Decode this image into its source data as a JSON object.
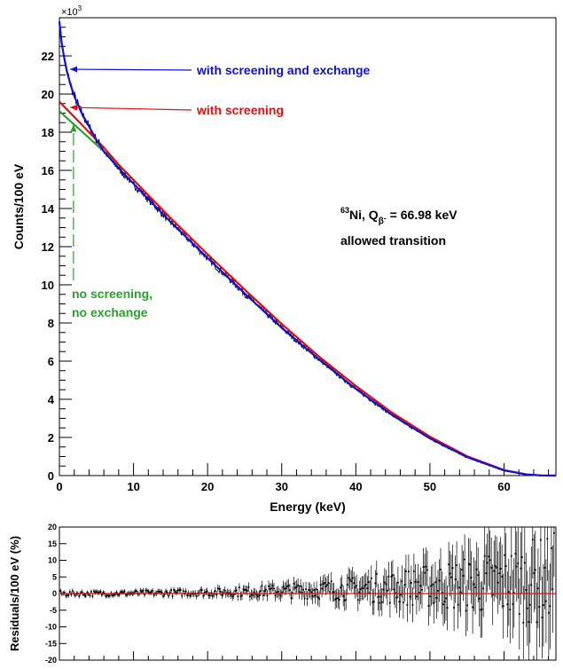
{
  "chart_data": [
    {
      "type": "line",
      "xlabel": "Energy (keV)",
      "ylabel": "Counts/100 eV",
      "y_multiplier_label": "×10",
      "y_multiplier_exp": "3",
      "xlim": [
        0,
        67
      ],
      "ylim": [
        0,
        24
      ],
      "x_ticks": [
        "0",
        "10",
        "20",
        "30",
        "40",
        "50",
        "60"
      ],
      "y_ticks": [
        "0",
        "2",
        "4",
        "6",
        "8",
        "10",
        "12",
        "14",
        "16",
        "18",
        "20",
        "22"
      ],
      "grid": false,
      "annotation": {
        "isotope_mass": "63",
        "isotope_text": "Ni, Q",
        "q_sub": "β",
        "q_sup": "-",
        "q_value": " = 66.98 keV",
        "line2": "allowed transition"
      },
      "series": [
        {
          "name": "with screening and exchange",
          "color": "#1010d8",
          "arrow_to": [
            1.2,
            21.3
          ],
          "x": [
            0,
            0.3,
            0.6,
            1,
            1.5,
            2,
            3,
            4,
            5,
            6,
            8,
            10,
            12,
            15,
            20,
            25,
            30,
            35,
            40,
            45,
            50,
            55,
            60,
            63,
            65,
            66.98
          ],
          "y": [
            23.8,
            22.7,
            22.0,
            21.2,
            20.5,
            19.9,
            19.0,
            18.3,
            17.6,
            17.0,
            16.1,
            15.3,
            14.5,
            13.3,
            11.4,
            9.55,
            7.75,
            6.1,
            4.55,
            3.15,
            1.95,
            0.97,
            0.27,
            0.06,
            0.01,
            0
          ]
        },
        {
          "name": "with screening",
          "color": "#e01010",
          "arrow_to": [
            1.2,
            19.3
          ],
          "x": [
            0,
            1,
            2,
            3,
            4,
            6,
            8,
            10,
            12,
            15,
            20,
            25,
            30,
            35,
            40,
            45,
            50,
            55,
            60,
            63,
            65,
            66.98
          ],
          "y": [
            19.6,
            19.2,
            18.8,
            18.4,
            18.0,
            17.2,
            16.3,
            15.5,
            14.7,
            13.5,
            11.6,
            9.75,
            7.95,
            6.25,
            4.7,
            3.27,
            2.04,
            1.02,
            0.29,
            0.06,
            0.01,
            0
          ]
        },
        {
          "name": "no screening, no exchange",
          "color": "#2e9e2e",
          "arrow_to": [
            1.9,
            18.4
          ],
          "x": [
            0,
            1,
            2,
            3,
            4,
            5,
            6,
            8
          ],
          "y": [
            19.1,
            18.75,
            18.4,
            18.05,
            17.7,
            17.35,
            17.0,
            16.25
          ]
        }
      ],
      "data_points_note": ""
    },
    {
      "type": "scatter",
      "xlabel": "",
      "ylabel": "Residuals/100 eV (%)",
      "xlim": [
        0,
        67
      ],
      "ylim": [
        -20,
        20
      ],
      "y_ticks": [
        "20",
        "15",
        "10",
        "5",
        "0",
        "-5",
        "-10",
        "-15",
        "-20"
      ],
      "reference_line": 0,
      "reference_color": "#e01010"
    }
  ],
  "labels": {
    "series0": "with screening and exchange",
    "series1": "with screening",
    "series2_line1": "no screening,",
    "series2_line2": "no exchange"
  }
}
